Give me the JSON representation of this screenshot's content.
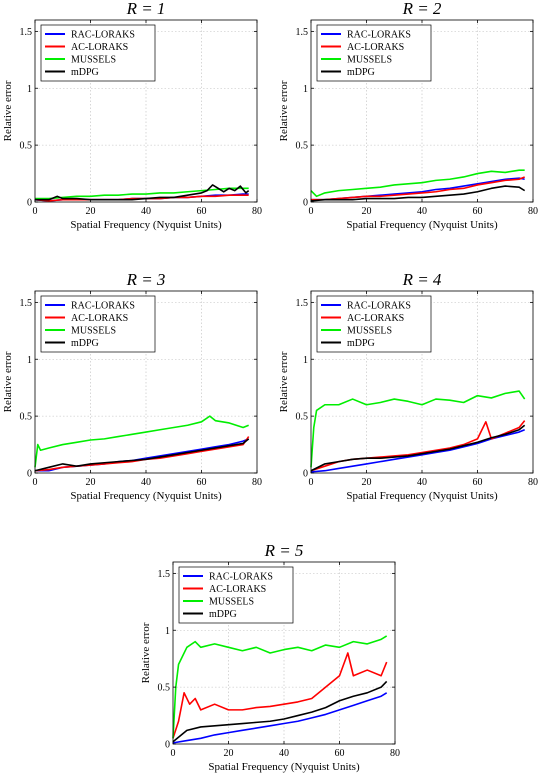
{
  "chart_data": [
    {
      "type": "line",
      "title": "R = 1",
      "xlabel": "Spatial Frequency (Nyquist Units)",
      "ylabel": "Relative error",
      "xlim": [
        0,
        80
      ],
      "ylim": [
        0,
        1.6
      ],
      "xticks": [
        "0",
        "20",
        "40",
        "60",
        "80"
      ],
      "yticks": [
        "0",
        "0.5",
        "1",
        "1.5"
      ],
      "grid": true,
      "legend": "top-left",
      "series": [
        {
          "name": "RAC-LORAKS",
          "color": "#0000ff",
          "x": [
            0,
            5,
            10,
            15,
            20,
            25,
            30,
            35,
            40,
            45,
            50,
            55,
            60,
            65,
            70,
            75,
            77
          ],
          "y": [
            0.02,
            0.01,
            0.02,
            0.02,
            0.02,
            0.02,
            0.02,
            0.03,
            0.03,
            0.03,
            0.04,
            0.04,
            0.05,
            0.06,
            0.06,
            0.07,
            0.07
          ]
        },
        {
          "name": "AC-LORAKS",
          "color": "#ff0000",
          "x": [
            0,
            5,
            10,
            15,
            20,
            25,
            30,
            35,
            40,
            45,
            50,
            55,
            60,
            65,
            70,
            75,
            77
          ],
          "y": [
            0.02,
            0.01,
            0.02,
            0.02,
            0.02,
            0.02,
            0.02,
            0.03,
            0.03,
            0.03,
            0.04,
            0.04,
            0.05,
            0.05,
            0.06,
            0.06,
            0.06
          ]
        },
        {
          "name": "MUSSELS",
          "color": "#00ee00",
          "x": [
            0,
            5,
            10,
            15,
            20,
            25,
            30,
            35,
            40,
            45,
            50,
            55,
            60,
            65,
            70,
            75,
            77
          ],
          "y": [
            0.03,
            0.03,
            0.04,
            0.05,
            0.05,
            0.06,
            0.06,
            0.07,
            0.07,
            0.08,
            0.08,
            0.09,
            0.1,
            0.11,
            0.12,
            0.12,
            0.12
          ]
        },
        {
          "name": "mDPG",
          "color": "#000000",
          "x": [
            0,
            5,
            8,
            10,
            15,
            20,
            25,
            30,
            35,
            40,
            45,
            50,
            55,
            60,
            62,
            64,
            66,
            68,
            70,
            72,
            74,
            76,
            77
          ],
          "y": [
            0.02,
            0.02,
            0.05,
            0.03,
            0.03,
            0.02,
            0.02,
            0.02,
            0.02,
            0.03,
            0.04,
            0.04,
            0.06,
            0.08,
            0.1,
            0.15,
            0.12,
            0.09,
            0.12,
            0.1,
            0.14,
            0.08,
            0.1
          ]
        }
      ]
    },
    {
      "type": "line",
      "title": "R = 2",
      "xlabel": "Spatial Frequency (Nyquist Units)",
      "ylabel": "Relative error",
      "xlim": [
        0,
        80
      ],
      "ylim": [
        0,
        1.6
      ],
      "xticks": [
        "0",
        "20",
        "40",
        "60",
        "80"
      ],
      "yticks": [
        "0",
        "0.5",
        "1",
        "1.5"
      ],
      "grid": true,
      "legend": "top-left",
      "series": [
        {
          "name": "RAC-LORAKS",
          "color": "#0000ff",
          "x": [
            0,
            5,
            10,
            15,
            20,
            25,
            30,
            35,
            40,
            45,
            50,
            55,
            60,
            65,
            70,
            75,
            77
          ],
          "y": [
            0.02,
            0.02,
            0.03,
            0.04,
            0.05,
            0.06,
            0.07,
            0.08,
            0.09,
            0.11,
            0.12,
            0.14,
            0.16,
            0.18,
            0.2,
            0.21,
            0.2
          ]
        },
        {
          "name": "AC-LORAKS",
          "color": "#ff0000",
          "x": [
            0,
            5,
            10,
            15,
            20,
            25,
            30,
            35,
            40,
            45,
            50,
            55,
            60,
            65,
            70,
            75,
            77
          ],
          "y": [
            0.02,
            0.02,
            0.03,
            0.04,
            0.05,
            0.05,
            0.06,
            0.07,
            0.08,
            0.09,
            0.11,
            0.12,
            0.15,
            0.17,
            0.19,
            0.2,
            0.22
          ]
        },
        {
          "name": "MUSSELS",
          "color": "#00ee00",
          "x": [
            0,
            2,
            5,
            10,
            15,
            20,
            25,
            30,
            35,
            40,
            45,
            50,
            55,
            60,
            65,
            70,
            75,
            77
          ],
          "y": [
            0.1,
            0.05,
            0.08,
            0.1,
            0.11,
            0.12,
            0.13,
            0.15,
            0.16,
            0.17,
            0.19,
            0.2,
            0.22,
            0.25,
            0.27,
            0.26,
            0.28,
            0.28
          ]
        },
        {
          "name": "mDPG",
          "color": "#000000",
          "x": [
            0,
            5,
            10,
            15,
            20,
            25,
            30,
            35,
            40,
            45,
            50,
            55,
            60,
            65,
            70,
            75,
            77
          ],
          "y": [
            0.01,
            0.02,
            0.02,
            0.02,
            0.03,
            0.03,
            0.03,
            0.04,
            0.04,
            0.05,
            0.06,
            0.07,
            0.09,
            0.12,
            0.14,
            0.13,
            0.1
          ]
        }
      ]
    },
    {
      "type": "line",
      "title": "R = 3",
      "xlabel": "Spatial Frequency (Nyquist Units)",
      "ylabel": "Relative error",
      "xlim": [
        0,
        80
      ],
      "ylim": [
        0,
        1.6
      ],
      "xticks": [
        "0",
        "20",
        "40",
        "60",
        "80"
      ],
      "yticks": [
        "0",
        "0.5",
        "1",
        "1.5"
      ],
      "grid": true,
      "legend": "top-left",
      "series": [
        {
          "name": "RAC-LORAKS",
          "color": "#0000ff",
          "x": [
            0,
            5,
            10,
            15,
            20,
            25,
            30,
            35,
            40,
            45,
            50,
            55,
            60,
            65,
            70,
            75,
            77
          ],
          "y": [
            0.02,
            0.02,
            0.05,
            0.06,
            0.07,
            0.08,
            0.1,
            0.11,
            0.13,
            0.15,
            0.17,
            0.19,
            0.21,
            0.23,
            0.25,
            0.28,
            0.3
          ]
        },
        {
          "name": "AC-LORAKS",
          "color": "#ff0000",
          "x": [
            0,
            5,
            10,
            15,
            20,
            25,
            30,
            35,
            40,
            45,
            50,
            55,
            60,
            65,
            70,
            75,
            77
          ],
          "y": [
            0.02,
            0.03,
            0.05,
            0.06,
            0.07,
            0.08,
            0.09,
            0.1,
            0.12,
            0.13,
            0.15,
            0.17,
            0.19,
            0.21,
            0.23,
            0.25,
            0.32
          ]
        },
        {
          "name": "MUSSELS",
          "color": "#00ee00",
          "x": [
            0,
            1,
            2,
            5,
            10,
            15,
            20,
            25,
            30,
            35,
            40,
            45,
            50,
            55,
            60,
            63,
            65,
            70,
            75,
            77
          ],
          "y": [
            0.05,
            0.25,
            0.2,
            0.22,
            0.25,
            0.27,
            0.29,
            0.3,
            0.32,
            0.34,
            0.36,
            0.38,
            0.4,
            0.42,
            0.45,
            0.5,
            0.46,
            0.44,
            0.4,
            0.42
          ]
        },
        {
          "name": "mDPG",
          "color": "#000000",
          "x": [
            0,
            5,
            10,
            15,
            20,
            25,
            30,
            35,
            40,
            45,
            50,
            55,
            60,
            65,
            70,
            75,
            77
          ],
          "y": [
            0.02,
            0.05,
            0.08,
            0.06,
            0.08,
            0.09,
            0.1,
            0.11,
            0.12,
            0.14,
            0.16,
            0.18,
            0.2,
            0.22,
            0.24,
            0.26,
            0.3
          ]
        }
      ]
    },
    {
      "type": "line",
      "title": "R = 4",
      "xlabel": "Spatial Frequency (Nyquist Units)",
      "ylabel": "Relative error",
      "xlim": [
        0,
        80
      ],
      "ylim": [
        0,
        1.6
      ],
      "xticks": [
        "0",
        "20",
        "40",
        "60",
        "80"
      ],
      "yticks": [
        "0",
        "0.5",
        "1",
        "1.5"
      ],
      "grid": true,
      "legend": "top-left",
      "series": [
        {
          "name": "RAC-LORAKS",
          "color": "#0000ff",
          "x": [
            0,
            5,
            10,
            15,
            20,
            25,
            30,
            35,
            40,
            45,
            50,
            55,
            60,
            65,
            70,
            75,
            77
          ],
          "y": [
            0.01,
            0.02,
            0.04,
            0.06,
            0.08,
            0.1,
            0.12,
            0.14,
            0.16,
            0.18,
            0.2,
            0.23,
            0.26,
            0.3,
            0.33,
            0.36,
            0.38
          ]
        },
        {
          "name": "AC-LORAKS",
          "color": "#ff0000",
          "x": [
            0,
            5,
            10,
            15,
            20,
            25,
            30,
            35,
            40,
            45,
            50,
            55,
            60,
            63,
            65,
            70,
            75,
            77
          ],
          "y": [
            0.02,
            0.06,
            0.1,
            0.12,
            0.13,
            0.14,
            0.15,
            0.16,
            0.18,
            0.2,
            0.22,
            0.25,
            0.3,
            0.45,
            0.3,
            0.35,
            0.4,
            0.46
          ]
        },
        {
          "name": "MUSSELS",
          "color": "#00ee00",
          "x": [
            0,
            1,
            2,
            5,
            10,
            15,
            20,
            25,
            30,
            35,
            40,
            45,
            50,
            55,
            60,
            65,
            70,
            75,
            77
          ],
          "y": [
            0.05,
            0.4,
            0.55,
            0.6,
            0.6,
            0.65,
            0.6,
            0.62,
            0.65,
            0.63,
            0.6,
            0.65,
            0.64,
            0.62,
            0.68,
            0.66,
            0.7,
            0.72,
            0.65
          ]
        },
        {
          "name": "mDPG",
          "color": "#000000",
          "x": [
            0,
            5,
            10,
            15,
            20,
            25,
            30,
            35,
            40,
            45,
            50,
            55,
            60,
            65,
            70,
            75,
            77
          ],
          "y": [
            0.02,
            0.08,
            0.1,
            0.12,
            0.13,
            0.13,
            0.14,
            0.15,
            0.17,
            0.19,
            0.21,
            0.24,
            0.27,
            0.31,
            0.34,
            0.38,
            0.42
          ]
        }
      ]
    },
    {
      "type": "line",
      "title": "R = 5",
      "xlabel": "Spatial Frequency (Nyquist Units)",
      "ylabel": "Relative error",
      "xlim": [
        0,
        80
      ],
      "ylim": [
        0,
        1.6
      ],
      "xticks": [
        "0",
        "20",
        "40",
        "60",
        "80"
      ],
      "yticks": [
        "0",
        "0.5",
        "1",
        "1.5"
      ],
      "grid": true,
      "legend": "top-left",
      "series": [
        {
          "name": "RAC-LORAKS",
          "color": "#0000ff",
          "x": [
            0,
            5,
            10,
            15,
            20,
            25,
            30,
            35,
            40,
            45,
            50,
            55,
            60,
            65,
            70,
            75,
            77
          ],
          "y": [
            0.01,
            0.03,
            0.05,
            0.08,
            0.1,
            0.12,
            0.14,
            0.16,
            0.18,
            0.2,
            0.23,
            0.26,
            0.3,
            0.34,
            0.38,
            0.42,
            0.45
          ]
        },
        {
          "name": "AC-LORAKS",
          "color": "#ff0000",
          "x": [
            0,
            2,
            4,
            6,
            8,
            10,
            15,
            20,
            25,
            30,
            35,
            40,
            45,
            50,
            55,
            60,
            63,
            65,
            70,
            75,
            77
          ],
          "y": [
            0.05,
            0.2,
            0.45,
            0.35,
            0.4,
            0.3,
            0.35,
            0.3,
            0.3,
            0.32,
            0.33,
            0.35,
            0.37,
            0.4,
            0.5,
            0.6,
            0.8,
            0.6,
            0.65,
            0.6,
            0.72
          ]
        },
        {
          "name": "MUSSELS",
          "color": "#00ee00",
          "x": [
            0,
            1,
            2,
            5,
            8,
            10,
            15,
            20,
            25,
            30,
            35,
            40,
            45,
            50,
            55,
            60,
            65,
            70,
            75,
            77
          ],
          "y": [
            0.05,
            0.5,
            0.7,
            0.85,
            0.9,
            0.85,
            0.88,
            0.85,
            0.82,
            0.85,
            0.8,
            0.83,
            0.85,
            0.82,
            0.87,
            0.85,
            0.9,
            0.88,
            0.92,
            0.95
          ]
        },
        {
          "name": "mDPG",
          "color": "#000000",
          "x": [
            0,
            5,
            10,
            15,
            20,
            25,
            30,
            35,
            40,
            45,
            50,
            55,
            60,
            65,
            70,
            75,
            77
          ],
          "y": [
            0.02,
            0.12,
            0.15,
            0.16,
            0.17,
            0.18,
            0.19,
            0.2,
            0.22,
            0.25,
            0.28,
            0.32,
            0.38,
            0.42,
            0.45,
            0.5,
            0.55
          ]
        }
      ]
    }
  ]
}
